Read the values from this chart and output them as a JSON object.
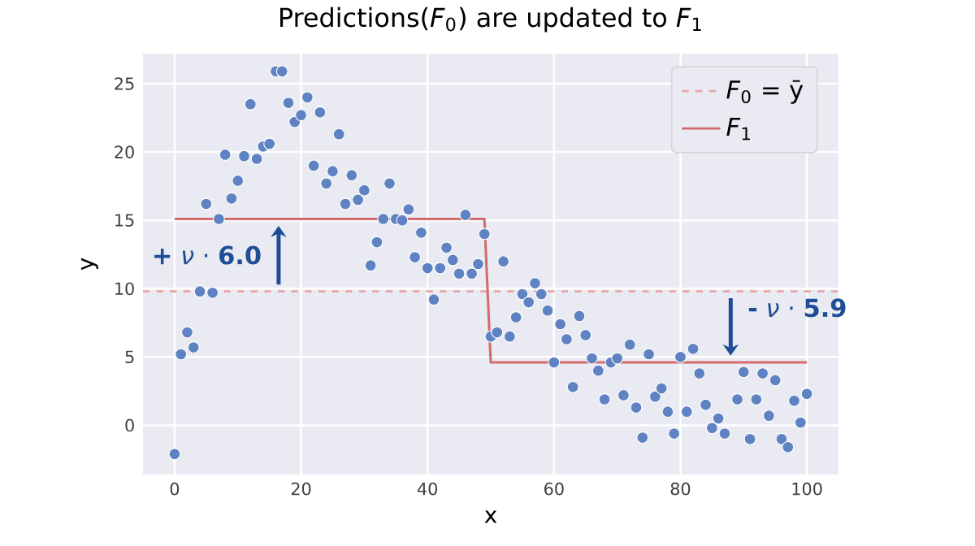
{
  "chart_data": {
    "type": "scatter",
    "title": "Predictions(*F*$_{0}$) are updated to *F*$_{1}$",
    "xlabel": "x",
    "ylabel": "y",
    "xlim": [
      -5,
      105
    ],
    "ylim": [
      -3.6,
      27.2
    ],
    "xticks": [
      0,
      20,
      40,
      60,
      80,
      100
    ],
    "yticks": [
      0,
      5,
      10,
      15,
      20,
      25
    ],
    "grid": true,
    "legend": "top right",
    "marker": "circle",
    "ref_lines": [
      {
        "axis": "y",
        "value": 9.8,
        "label": "*F*$_{0}$ = ȳ",
        "color": "#e8a6a6",
        "line_style": "dashed"
      }
    ],
    "series": [
      {
        "color": "#5f83c2",
        "x": [
          0,
          1,
          2,
          3,
          4,
          5,
          6,
          7,
          8,
          9,
          10,
          11,
          12,
          13,
          14,
          15,
          16,
          17,
          18,
          19,
          20,
          21,
          22,
          23,
          24,
          25,
          26,
          27,
          28,
          29,
          30,
          31,
          32,
          33,
          34,
          35,
          36,
          37,
          38,
          39,
          40,
          41,
          42,
          43,
          44,
          45,
          46,
          47,
          48,
          49,
          50,
          51,
          52,
          53,
          54,
          55,
          56,
          57,
          58,
          59,
          60,
          61,
          62,
          63,
          64,
          65,
          66,
          67,
          68,
          69,
          70,
          71,
          72,
          73,
          74,
          75,
          76,
          77,
          78,
          79,
          80,
          81,
          82,
          83,
          84,
          85,
          86,
          87,
          89,
          90,
          91,
          92,
          93,
          94,
          95,
          96,
          97,
          98,
          99,
          100
        ],
        "values": [
          -2.1,
          5.2,
          6.8,
          5.7,
          9.8,
          16.2,
          9.7,
          15.1,
          19.8,
          16.6,
          17.9,
          19.7,
          23.5,
          19.5,
          20.4,
          20.6,
          25.9,
          25.9,
          23.6,
          22.2,
          22.7,
          24.0,
          19.0,
          22.9,
          17.7,
          18.6,
          21.3,
          16.2,
          18.3,
          16.5,
          17.2,
          11.7,
          13.4,
          15.1,
          17.7,
          15.1,
          15.0,
          15.8,
          12.3,
          14.1,
          11.5,
          9.2,
          11.5,
          13.0,
          12.1,
          11.1,
          15.4,
          11.1,
          11.8,
          14.0,
          6.5,
          6.8,
          12.0,
          6.5,
          7.9,
          9.6,
          9.0,
          10.4,
          9.6,
          8.4,
          4.6,
          7.4,
          6.3,
          2.8,
          8.0,
          6.6,
          4.9,
          4.0,
          1.9,
          4.6,
          4.9,
          2.2,
          5.9,
          1.3,
          -0.9,
          5.2,
          2.1,
          2.7,
          1.0,
          -0.6,
          5.0,
          1.0,
          5.6,
          3.8,
          1.5,
          -0.2,
          0.5,
          -0.6,
          1.9,
          3.9,
          -1.0,
          1.9,
          3.8,
          0.7,
          3.3,
          -1.0,
          -1.6,
          1.8,
          0.2,
          2.3
        ]
      },
      {
        "type": "line",
        "name": "*F*$_{1}$",
        "color": "#d16b6e",
        "marker": "none",
        "x": [
          0,
          49,
          50,
          100
        ],
        "values": [
          15.1,
          15.1,
          4.6,
          4.6
        ]
      }
    ],
    "annotations": [
      "**+** *ν* · **6.0**",
      "**-** *ν* · **5.9**"
    ]
  }
}
